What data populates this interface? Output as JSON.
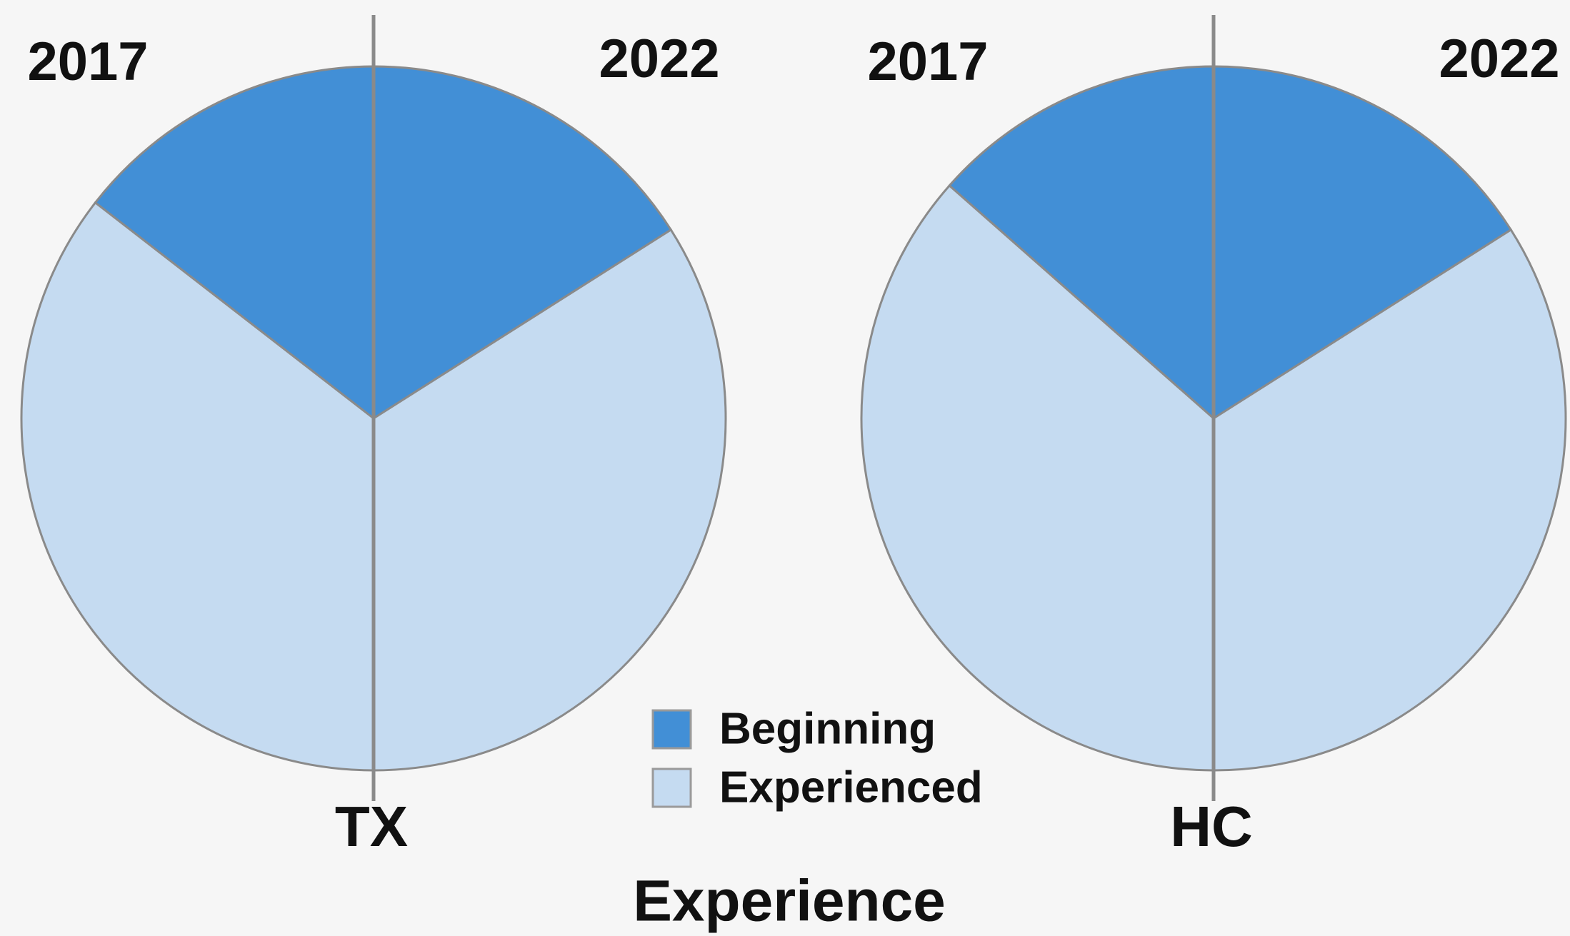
{
  "chart_data": {
    "type": "split-pie",
    "title": "Experience",
    "series": [
      {
        "name": "Beginning",
        "color": "#428fd6"
      },
      {
        "name": "Experienced",
        "color": "#c5dbf1"
      }
    ],
    "pies": [
      {
        "label": "TX",
        "halves": [
          {
            "label": "2017",
            "values": [
              29,
              71
            ]
          },
          {
            "label": "2022",
            "values": [
              32,
              68
            ]
          }
        ]
      },
      {
        "label": "HC",
        "halves": [
          {
            "label": "2017",
            "values": [
              27,
              73
            ]
          },
          {
            "label": "2022",
            "values": [
              32,
              68
            ]
          }
        ]
      }
    ]
  }
}
